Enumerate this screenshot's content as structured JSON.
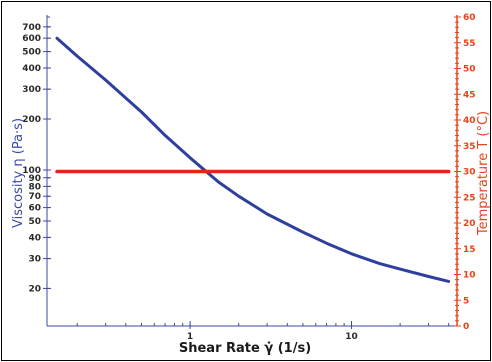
{
  "chart_data": {
    "type": "line",
    "title": "",
    "xlabel": "Shear Rate γ̇ (1/s)",
    "ylabel_left": "Viscosity η (Pa·s)",
    "ylabel_right": "Temperature T (°C)",
    "x_scale": "log",
    "y_left_scale": "log",
    "xlim": [
      0.13,
      45
    ],
    "ylim_left": [
      12,
      800
    ],
    "ylim_right": [
      0,
      60
    ],
    "x_ticks": [
      1,
      10
    ],
    "x_tick_labels": [
      "1",
      "10"
    ],
    "y_left_ticks": [
      20,
      30,
      40,
      50,
      60,
      70,
      80,
      90,
      100,
      200,
      300,
      400,
      500,
      600,
      700
    ],
    "y_left_tick_labels": [
      "20",
      "30",
      "40",
      "50",
      "60",
      "70",
      "80",
      "90",
      "100",
      "200",
      "300",
      "400",
      "500",
      "600",
      "700"
    ],
    "y_right_ticks": [
      0,
      5,
      10,
      15,
      20,
      25,
      30,
      35,
      40,
      45,
      50,
      55,
      60
    ],
    "y_right_tick_labels": [
      "0",
      "5",
      "10",
      "15",
      "20",
      "25",
      "30",
      "35",
      "40",
      "45",
      "50",
      "55",
      "60"
    ],
    "grid": false,
    "series": [
      {
        "axis": "left",
        "color": "#2e3f9e",
        "x": [
          0.15,
          0.2,
          0.3,
          0.5,
          0.7,
          1,
          1.5,
          2,
          3,
          5,
          7,
          10,
          15,
          20,
          30,
          40
        ],
        "y": [
          600,
          470,
          340,
          220,
          160,
          118,
          85,
          70,
          55,
          43,
          37,
          32,
          28,
          26,
          23.5,
          22
        ]
      },
      {
        "axis": "right",
        "color": "#e8231a",
        "x": [
          0.15,
          40
        ],
        "y": [
          30,
          30
        ]
      }
    ],
    "colors": {
      "left_axis": "#3a4aa8",
      "right_axis": "#e8431a",
      "frame": "#000000"
    }
  }
}
